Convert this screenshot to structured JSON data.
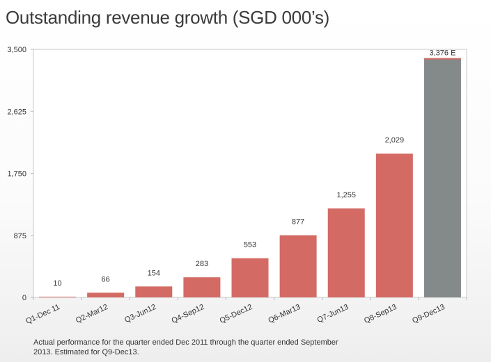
{
  "chart_data": {
    "type": "bar",
    "title": "Outstanding revenue growth (SGD 000’s)",
    "categories": [
      "Q1-Dec 11",
      "Q2-Mar12",
      "Q3-Jun12",
      "Q4-Sep12",
      "Q5-Dec12",
      "Q6-Mar13",
      "Q7-Jun13",
      "Q8-Sep13",
      "Q9-Dec13"
    ],
    "values": [
      10,
      66,
      154,
      283,
      553,
      877,
      1255,
      2029,
      3376
    ],
    "data_labels": [
      "10",
      "66",
      "154",
      "283",
      "553",
      "877",
      "1,255",
      "2,029",
      "3,376 E"
    ],
    "estimated": [
      false,
      false,
      false,
      false,
      false,
      false,
      false,
      false,
      true
    ],
    "yticks": [
      0,
      875,
      1750,
      2625,
      3500
    ],
    "ytick_labels": [
      "0",
      "875",
      "1,750",
      "2,625",
      "3,500"
    ],
    "ylim": [
      0,
      3500
    ],
    "xlabel": "",
    "ylabel": "",
    "grid": false,
    "colors": {
      "actual": "#d46a64",
      "estimated": "#848a89",
      "estimated_top": "#d46a64"
    }
  },
  "footnote": {
    "line1": "Actual performance for the quarter ended Dec 2011 through the quarter ended September",
    "line2": "2013. Estimated for Q9-Dec13."
  }
}
